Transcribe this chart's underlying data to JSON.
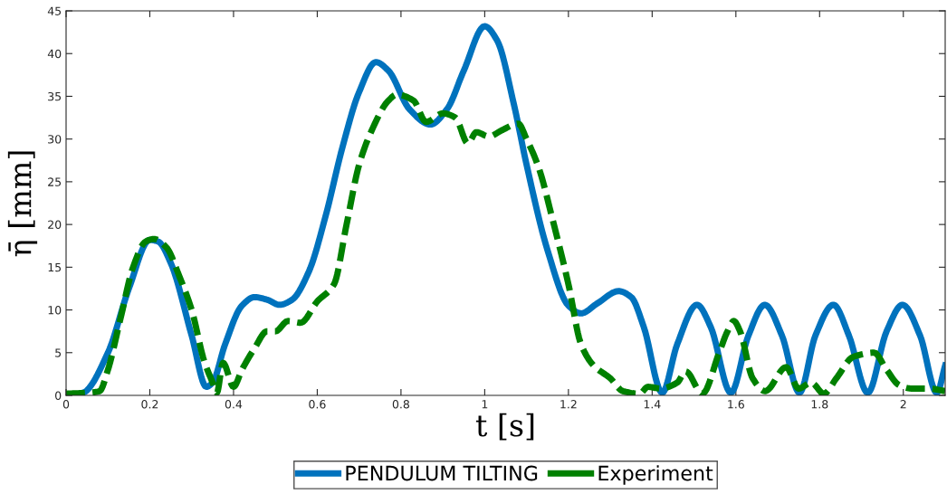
{
  "chart_data": {
    "type": "line",
    "xlabel": "t [s]",
    "ylabel": "η̄ [mm]",
    "xlim": [
      0,
      2.1
    ],
    "ylim": [
      0,
      45
    ],
    "xticks": [
      0,
      0.2,
      0.4,
      0.6,
      0.8,
      1,
      1.2,
      1.4,
      1.6,
      1.8,
      2
    ],
    "yticks": [
      0,
      5,
      10,
      15,
      20,
      25,
      30,
      35,
      40,
      45
    ],
    "grid": false,
    "legend": "bottom",
    "marker": "none",
    "series": [
      {
        "name": "PENDULUM TILTING",
        "color": "#0072bd",
        "line_style": "solid",
        "x": [
          0,
          0.04,
          0.1,
          0.15,
          0.2,
          0.22,
          0.25,
          0.3,
          0.335,
          0.35,
          0.38,
          0.42,
          0.45,
          0.48,
          0.51,
          0.54,
          0.58,
          0.62,
          0.66,
          0.7,
          0.74,
          0.77,
          0.82,
          0.87,
          0.91,
          0.95,
          1.0,
          1.03,
          1.07,
          1.1,
          1.15,
          1.2,
          1.23,
          1.27,
          1.32,
          1.35,
          1.38,
          1.424,
          1.46,
          1.507,
          1.54,
          1.588,
          1.63,
          1.669,
          1.71,
          1.752,
          1.79,
          1.833,
          1.87,
          1.915,
          1.96,
          1.998,
          2.04,
          2.08,
          2.1
        ],
        "values": [
          0,
          0.3,
          5,
          12.5,
          18.2,
          18,
          15.5,
          7,
          1,
          1.5,
          6,
          10.5,
          11.5,
          11.2,
          10.6,
          11.2,
          14.5,
          21,
          29,
          35.5,
          39,
          38,
          33.5,
          31.7,
          33.5,
          38,
          43.2,
          41.5,
          34,
          27,
          17,
          10.5,
          9.6,
          10.8,
          12.2,
          11.5,
          8,
          0.3,
          6,
          10.6,
          8,
          0.3,
          7,
          10.6,
          7,
          0.3,
          7,
          10.6,
          7,
          0.3,
          7.5,
          10.6,
          7,
          0.3,
          3.5
        ]
      },
      {
        "name": "Experiment",
        "color": "#008000",
        "line_style": "dashed",
        "x": [
          0,
          0.05,
          0.08,
          0.1,
          0.13,
          0.16,
          0.19,
          0.21,
          0.24,
          0.27,
          0.3,
          0.33,
          0.35,
          0.36,
          0.375,
          0.4,
          0.42,
          0.45,
          0.48,
          0.5,
          0.53,
          0.56,
          0.6,
          0.64,
          0.67,
          0.7,
          0.73,
          0.77,
          0.79,
          0.83,
          0.86,
          0.9,
          0.93,
          0.96,
          0.98,
          1.01,
          1.04,
          1.08,
          1.1,
          1.13,
          1.16,
          1.2,
          1.23,
          1.26,
          1.3,
          1.33,
          1.37,
          1.39,
          1.42,
          1.46,
          1.48,
          1.52,
          1.56,
          1.58,
          1.595,
          1.61,
          1.64,
          1.67,
          1.72,
          1.75,
          1.78,
          1.81,
          1.84,
          1.88,
          1.93,
          1.96,
          1.99,
          2.02,
          2.06,
          2.1
        ],
        "values": [
          0.2,
          0.3,
          0.5,
          3,
          9,
          15,
          18,
          18.3,
          17.3,
          14,
          10,
          4,
          1.5,
          0.3,
          3.8,
          1,
          3,
          5.5,
          7.5,
          7.5,
          8.7,
          8.5,
          11,
          13,
          20,
          27,
          31,
          34.5,
          35.2,
          34.5,
          32,
          33,
          32.5,
          29.5,
          30.8,
          30.3,
          31,
          31.8,
          30,
          26.5,
          21,
          13,
          6,
          3.5,
          2,
          0.5,
          0.2,
          1,
          0.8,
          1.5,
          2.8,
          0.2,
          5,
          7.5,
          8.7,
          7.5,
          2,
          0.5,
          3.3,
          0.8,
          1.5,
          0.2,
          2,
          4.5,
          5,
          3,
          1.2,
          0.8,
          0.8,
          0.5
        ]
      }
    ]
  }
}
